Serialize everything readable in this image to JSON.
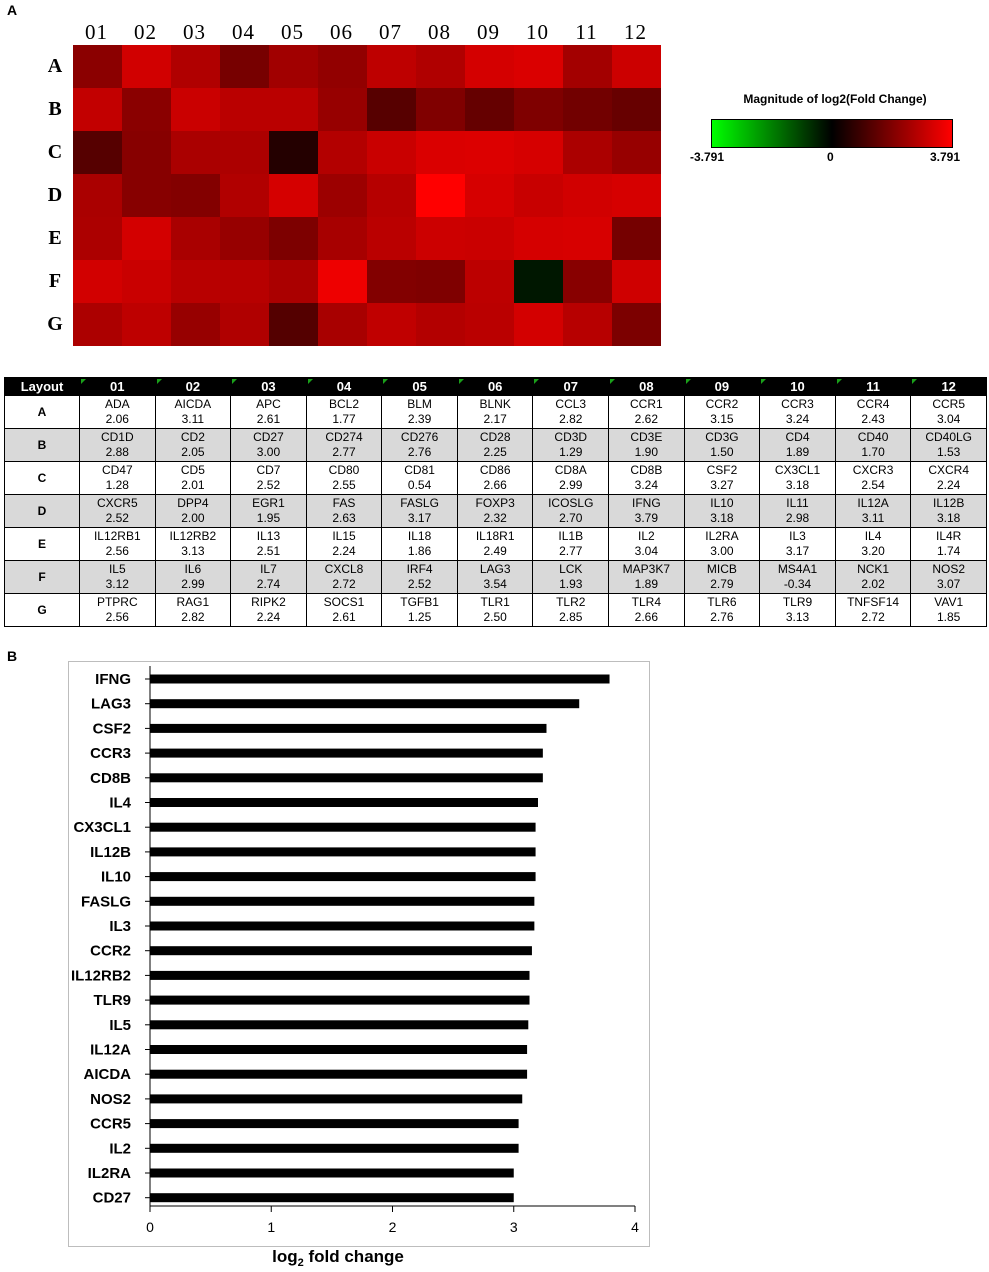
{
  "panel_a_label": "A",
  "panel_b_label": "B",
  "legend": {
    "title": "Magnitude of log2(Fold Change)",
    "min_label": "-3.791",
    "mid_label": "0",
    "max_label": "3.791",
    "min_value": -3.791,
    "max_value": 3.791,
    "colors": {
      "negative": "#00ff00",
      "zero": "#000000",
      "positive": "#ff0000"
    }
  },
  "table": {
    "header_label": "Layout",
    "columns": [
      "01",
      "02",
      "03",
      "04",
      "05",
      "06",
      "07",
      "08",
      "09",
      "10",
      "11",
      "12"
    ],
    "rows": [
      {
        "label": "A",
        "cells": [
          {
            "gene": "ADA",
            "value": "2.06"
          },
          {
            "gene": "AICDA",
            "value": "3.11"
          },
          {
            "gene": "APC",
            "value": "2.61"
          },
          {
            "gene": "BCL2",
            "value": "1.77"
          },
          {
            "gene": "BLM",
            "value": "2.39"
          },
          {
            "gene": "BLNK",
            "value": "2.17"
          },
          {
            "gene": "CCL3",
            "value": "2.82"
          },
          {
            "gene": "CCR1",
            "value": "2.62"
          },
          {
            "gene": "CCR2",
            "value": "3.15"
          },
          {
            "gene": "CCR3",
            "value": "3.24"
          },
          {
            "gene": "CCR4",
            "value": "2.43"
          },
          {
            "gene": "CCR5",
            "value": "3.04"
          }
        ]
      },
      {
        "label": "B",
        "cells": [
          {
            "gene": "CD1D",
            "value": "2.88"
          },
          {
            "gene": "CD2",
            "value": "2.05"
          },
          {
            "gene": "CD27",
            "value": "3.00"
          },
          {
            "gene": "CD274",
            "value": "2.77"
          },
          {
            "gene": "CD276",
            "value": "2.76"
          },
          {
            "gene": "CD28",
            "value": "2.25"
          },
          {
            "gene": "CD3D",
            "value": "1.29"
          },
          {
            "gene": "CD3E",
            "value": "1.90"
          },
          {
            "gene": "CD3G",
            "value": "1.50"
          },
          {
            "gene": "CD4",
            "value": "1.89"
          },
          {
            "gene": "CD40",
            "value": "1.70"
          },
          {
            "gene": "CD40LG",
            "value": "1.53"
          }
        ]
      },
      {
        "label": "C",
        "cells": [
          {
            "gene": "CD47",
            "value": "1.28"
          },
          {
            "gene": "CD5",
            "value": "2.01"
          },
          {
            "gene": "CD7",
            "value": "2.52"
          },
          {
            "gene": "CD80",
            "value": "2.55"
          },
          {
            "gene": "CD81",
            "value": "0.54"
          },
          {
            "gene": "CD86",
            "value": "2.66"
          },
          {
            "gene": "CD8A",
            "value": "2.99"
          },
          {
            "gene": "CD8B",
            "value": "3.24"
          },
          {
            "gene": "CSF2",
            "value": "3.27"
          },
          {
            "gene": "CX3CL1",
            "value": "3.18"
          },
          {
            "gene": "CXCR3",
            "value": "2.54"
          },
          {
            "gene": "CXCR4",
            "value": "2.24"
          }
        ]
      },
      {
        "label": "D",
        "cells": [
          {
            "gene": "CXCR5",
            "value": "2.52"
          },
          {
            "gene": "DPP4",
            "value": "2.00"
          },
          {
            "gene": "EGR1",
            "value": "1.95"
          },
          {
            "gene": "FAS",
            "value": "2.63"
          },
          {
            "gene": "FASLG",
            "value": "3.17"
          },
          {
            "gene": "FOXP3",
            "value": "2.32"
          },
          {
            "gene": "ICOSLG",
            "value": "2.70"
          },
          {
            "gene": "IFNG",
            "value": "3.79"
          },
          {
            "gene": "IL10",
            "value": "3.18"
          },
          {
            "gene": "IL11",
            "value": "2.98"
          },
          {
            "gene": "IL12A",
            "value": "3.11"
          },
          {
            "gene": "IL12B",
            "value": "3.18"
          }
        ]
      },
      {
        "label": "E",
        "cells": [
          {
            "gene": "IL12RB1",
            "value": "2.56"
          },
          {
            "gene": "IL12RB2",
            "value": "3.13"
          },
          {
            "gene": "IL13",
            "value": "2.51"
          },
          {
            "gene": "IL15",
            "value": "2.24"
          },
          {
            "gene": "IL18",
            "value": "1.86"
          },
          {
            "gene": "IL18R1",
            "value": "2.49"
          },
          {
            "gene": "IL1B",
            "value": "2.77"
          },
          {
            "gene": "IL2",
            "value": "3.04"
          },
          {
            "gene": "IL2RA",
            "value": "3.00"
          },
          {
            "gene": "IL3",
            "value": "3.17"
          },
          {
            "gene": "IL4",
            "value": "3.20"
          },
          {
            "gene": "IL4R",
            "value": "1.74"
          }
        ]
      },
      {
        "label": "F",
        "cells": [
          {
            "gene": "IL5",
            "value": "3.12"
          },
          {
            "gene": "IL6",
            "value": "2.99"
          },
          {
            "gene": "IL7",
            "value": "2.74"
          },
          {
            "gene": "CXCL8",
            "value": "2.72"
          },
          {
            "gene": "IRF4",
            "value": "2.52"
          },
          {
            "gene": "LAG3",
            "value": "3.54"
          },
          {
            "gene": "LCK",
            "value": "1.93"
          },
          {
            "gene": "MAP3K7",
            "value": "1.89"
          },
          {
            "gene": "MICB",
            "value": "2.79"
          },
          {
            "gene": "MS4A1",
            "value": "-0.34"
          },
          {
            "gene": "NCK1",
            "value": "2.02"
          },
          {
            "gene": "NOS2",
            "value": "3.07"
          }
        ]
      },
      {
        "label": "G",
        "cells": [
          {
            "gene": "PTPRC",
            "value": "2.56"
          },
          {
            "gene": "RAG1",
            "value": "2.82"
          },
          {
            "gene": "RIPK2",
            "value": "2.24"
          },
          {
            "gene": "SOCS1",
            "value": "2.61"
          },
          {
            "gene": "TGFB1",
            "value": "1.25"
          },
          {
            "gene": "TLR1",
            "value": "2.50"
          },
          {
            "gene": "TLR2",
            "value": "2.85"
          },
          {
            "gene": "TLR4",
            "value": "2.66"
          },
          {
            "gene": "TLR6",
            "value": "2.76"
          },
          {
            "gene": "TLR9",
            "value": "3.13"
          },
          {
            "gene": "TNFSF14",
            "value": "2.72"
          },
          {
            "gene": "VAV1",
            "value": "1.85"
          }
        ]
      }
    ]
  },
  "chart_data": [
    {
      "type": "heatmap",
      "columns": [
        "01",
        "02",
        "03",
        "04",
        "05",
        "06",
        "07",
        "08",
        "09",
        "10",
        "11",
        "12"
      ],
      "rows": [
        "A",
        "B",
        "C",
        "D",
        "E",
        "F",
        "G"
      ],
      "values": [
        [
          2.06,
          3.11,
          2.61,
          1.77,
          2.39,
          2.17,
          2.82,
          2.62,
          3.15,
          3.24,
          2.43,
          3.04
        ],
        [
          2.88,
          2.05,
          3.0,
          2.77,
          2.76,
          2.25,
          1.29,
          1.9,
          1.5,
          1.89,
          1.7,
          1.53
        ],
        [
          1.28,
          2.01,
          2.52,
          2.55,
          0.54,
          2.66,
          2.99,
          3.24,
          3.27,
          3.18,
          2.54,
          2.24
        ],
        [
          2.52,
          2.0,
          1.95,
          2.63,
          3.17,
          2.32,
          2.7,
          3.79,
          3.18,
          2.98,
          3.11,
          3.18
        ],
        [
          2.56,
          3.13,
          2.51,
          2.24,
          1.86,
          2.49,
          2.77,
          3.04,
          3.0,
          3.17,
          3.2,
          1.74
        ],
        [
          3.12,
          2.99,
          2.74,
          2.72,
          2.52,
          3.54,
          1.93,
          1.89,
          2.79,
          -0.34,
          2.02,
          3.07
        ],
        [
          2.56,
          2.82,
          2.24,
          2.61,
          1.25,
          2.5,
          2.85,
          2.66,
          2.76,
          3.13,
          2.72,
          1.85
        ]
      ],
      "color_range": [
        -3.791,
        3.791
      ]
    },
    {
      "type": "bar",
      "orientation": "horizontal",
      "categories": [
        "IFNG",
        "LAG3",
        "CSF2",
        "CCR3",
        "CD8B",
        "IL4",
        "CX3CL1",
        "IL12B",
        "IL10",
        "FASLG",
        "IL3",
        "CCR2",
        "IL12RB2",
        "TLR9",
        "IL5",
        "IL12A",
        "AICDA",
        "NOS2",
        "CCR5",
        "IL2",
        "IL2RA",
        "CD27"
      ],
      "values": [
        3.79,
        3.54,
        3.27,
        3.24,
        3.24,
        3.2,
        3.18,
        3.18,
        3.18,
        3.17,
        3.17,
        3.15,
        3.13,
        3.13,
        3.12,
        3.11,
        3.11,
        3.07,
        3.04,
        3.04,
        3.0,
        3.0
      ],
      "xlim": [
        0,
        4
      ],
      "xticks": [
        "0",
        "1",
        "2",
        "3",
        "4"
      ],
      "xlabel": "log",
      "xlabel_sub": "2",
      "xlabel_tail": " fold change",
      "bar_color": "#000000",
      "grid": false
    }
  ]
}
